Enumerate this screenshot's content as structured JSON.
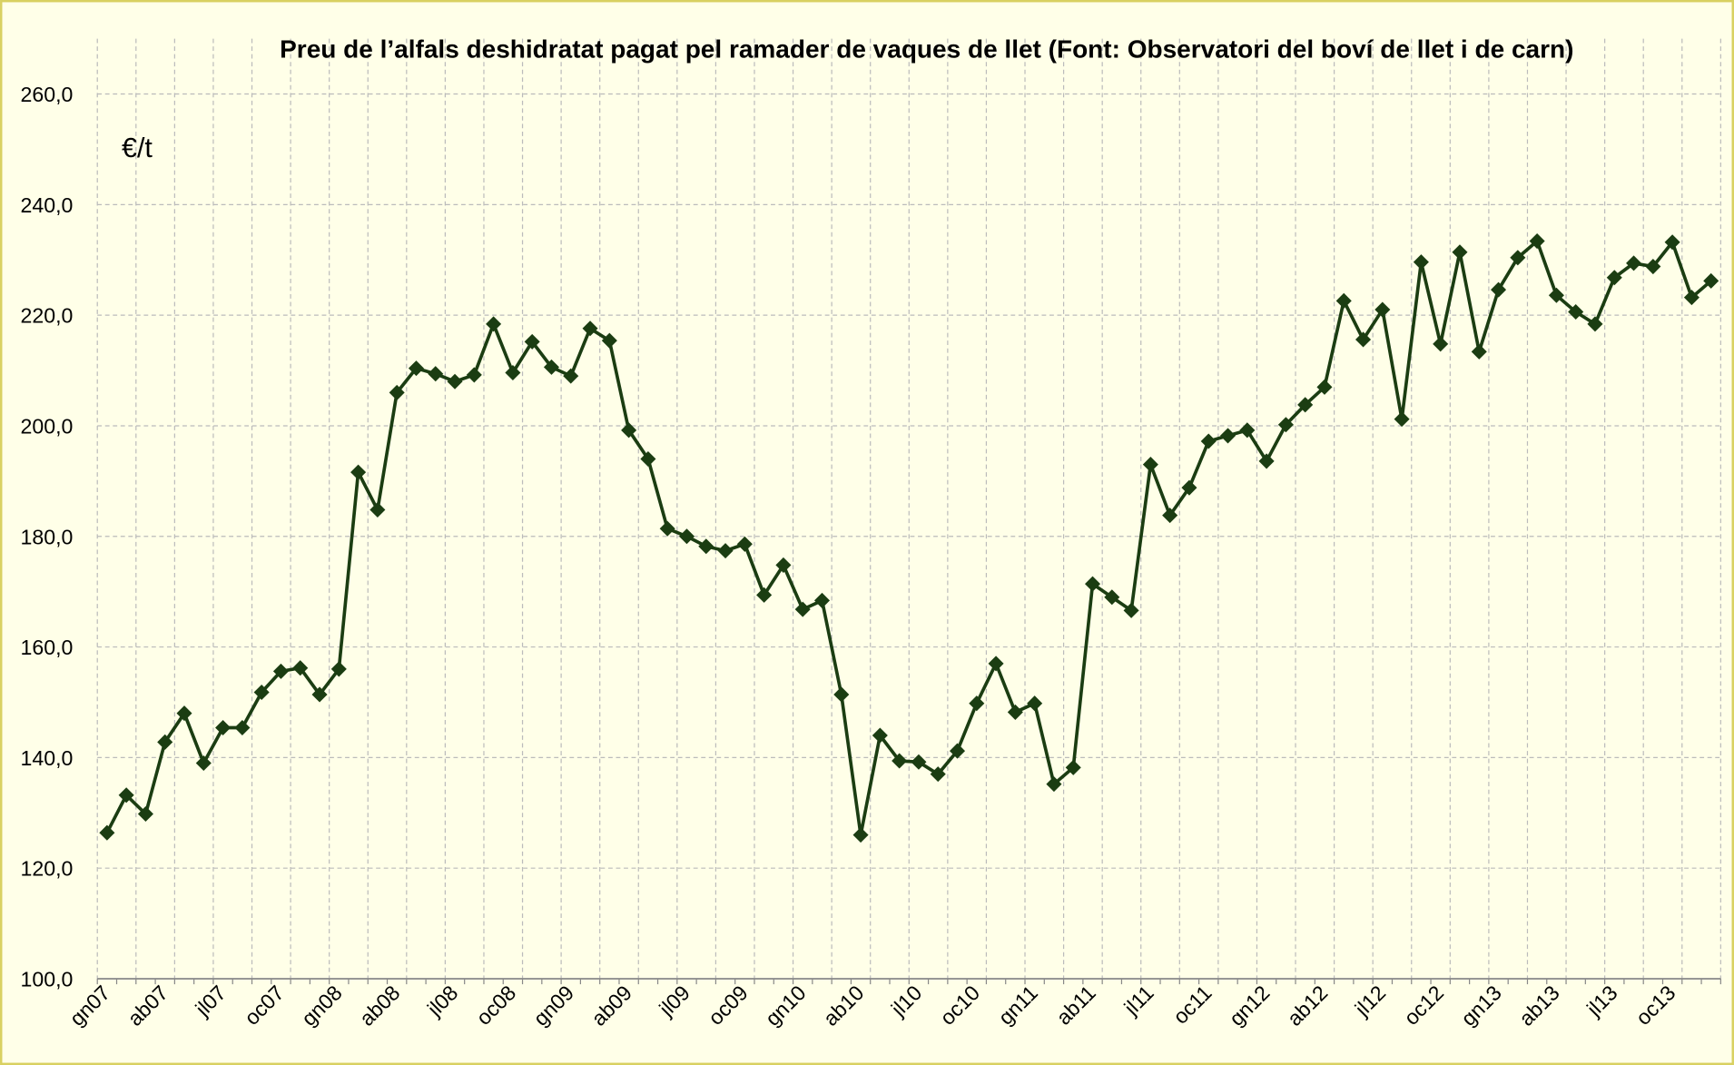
{
  "chart_data": {
    "type": "line",
    "title": "Preu de l’alfals deshidratat pagat pel ramader de vaques de llet (Font: Observatori del boví de llet i de carn)",
    "y_label": "€/t",
    "categories": [
      "gn07",
      null,
      null,
      "ab07",
      null,
      null,
      "jl07",
      null,
      null,
      "oc07",
      null,
      null,
      "gn08",
      null,
      null,
      "ab08",
      null,
      null,
      "jl08",
      null,
      null,
      "oc08",
      null,
      null,
      "gn09",
      null,
      null,
      "ab09",
      null,
      null,
      "jl09",
      null,
      null,
      "oc09",
      null,
      null,
      "gn10",
      null,
      null,
      "ab10",
      null,
      null,
      "jl10",
      null,
      null,
      "oc10",
      null,
      null,
      "gn11",
      null,
      null,
      "ab11",
      null,
      null,
      "jl11",
      null,
      null,
      "oc11",
      null,
      null,
      "gn12",
      null,
      null,
      "ab12",
      null,
      null,
      "jl12",
      null,
      null,
      "oc12",
      null,
      null,
      "gn13",
      null,
      null,
      "ab13",
      null,
      null,
      "jl13",
      null,
      null,
      "oc13",
      null,
      null
    ],
    "series": [
      {
        "name": "Preu",
        "color": "#1b3d12",
        "values": [
          126.4,
          133.2,
          129.8,
          142.8,
          148,
          139,
          145.4,
          145.4,
          151.8,
          155.6,
          156.2,
          151.4,
          156,
          191.6,
          184.8,
          206,
          210.4,
          209.4,
          208,
          209.2,
          218.4,
          209.6,
          215.2,
          210.6,
          209,
          217.6,
          215.4,
          199.2,
          194,
          181.4,
          180,
          178.2,
          177.4,
          178.6,
          169.4,
          174.8,
          166.8,
          168.4,
          151.4,
          126,
          144,
          139.4,
          139.2,
          137,
          141.2,
          149.8,
          157,
          148.2,
          149.8,
          135.2,
          138.2,
          171.4,
          169,
          166.6,
          193,
          183.8,
          188.8,
          197.2,
          198.2,
          199.2,
          193.6,
          200.2,
          203.8,
          207,
          222.6,
          215.6,
          221,
          201.2,
          229.6,
          214.8,
          231.4,
          213.4,
          224.6,
          230.4,
          233.4,
          223.6,
          220.6,
          218.4,
          226.8,
          229.4,
          228.8,
          233.2,
          223.2,
          226.2
        ]
      }
    ],
    "ylim": [
      100,
      260
    ],
    "yticks": [
      {
        "value": 100,
        "label": "100,0"
      },
      {
        "value": 120,
        "label": "120,0"
      },
      {
        "value": 140,
        "label": "140,0"
      },
      {
        "value": 160,
        "label": "160,0"
      },
      {
        "value": 180,
        "label": "180,0"
      },
      {
        "value": 200,
        "label": "200,0"
      },
      {
        "value": 220,
        "label": "220,0"
      },
      {
        "value": 240,
        "label": "240,0"
      },
      {
        "value": 260,
        "label": "260,0"
      }
    ],
    "grid": true
  }
}
